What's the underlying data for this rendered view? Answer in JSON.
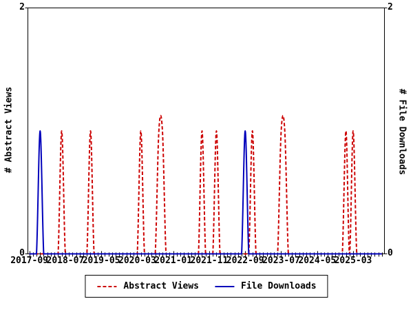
{
  "colors": {
    "abstract_views": "#cc0000",
    "file_downloads": "#0000bb",
    "axis": "#000000",
    "background": "#ffffff"
  },
  "legend": {
    "items": [
      {
        "label": "Abstract Views",
        "style": "dashed"
      },
      {
        "label": "File Downloads",
        "style": "solid"
      }
    ]
  },
  "chart_data": {
    "type": "line",
    "title": "",
    "ylabel": "# Abstract Views",
    "y2label": "# File Downloads",
    "ylim": [
      0,
      2
    ],
    "y_tick_labels": [
      "0",
      "2"
    ],
    "x_start_month": "2017-09",
    "x_end_month": "2025-11",
    "x_months_per_tick": 10,
    "x_tick_labels": [
      "2017-09",
      "2018-07",
      "2019-05",
      "2020-03",
      "2021-01",
      "2021-11",
      "2022-09",
      "2023-07",
      "2024-05",
      "2025-03"
    ],
    "grid": false,
    "legend_position": "bottom-center",
    "series": [
      {
        "name": "Abstract Views",
        "color": "#cc0000",
        "line_style": "dashed",
        "axis": "left",
        "baseline_value": 0,
        "spike_value": 1,
        "spike_months": [
          "2018-06",
          "2019-02",
          "2020-04",
          "2020-09",
          "2020-10",
          "2021-09",
          "2022-01",
          "2022-11",
          "2023-07",
          "2023-08",
          "2025-01",
          "2025-03"
        ]
      },
      {
        "name": "File Downloads",
        "color": "#0000bb",
        "line_style": "solid",
        "axis": "right",
        "baseline_value": 0,
        "spike_value": 1,
        "spike_months": [
          "2017-12",
          "2022-09"
        ]
      }
    ]
  }
}
